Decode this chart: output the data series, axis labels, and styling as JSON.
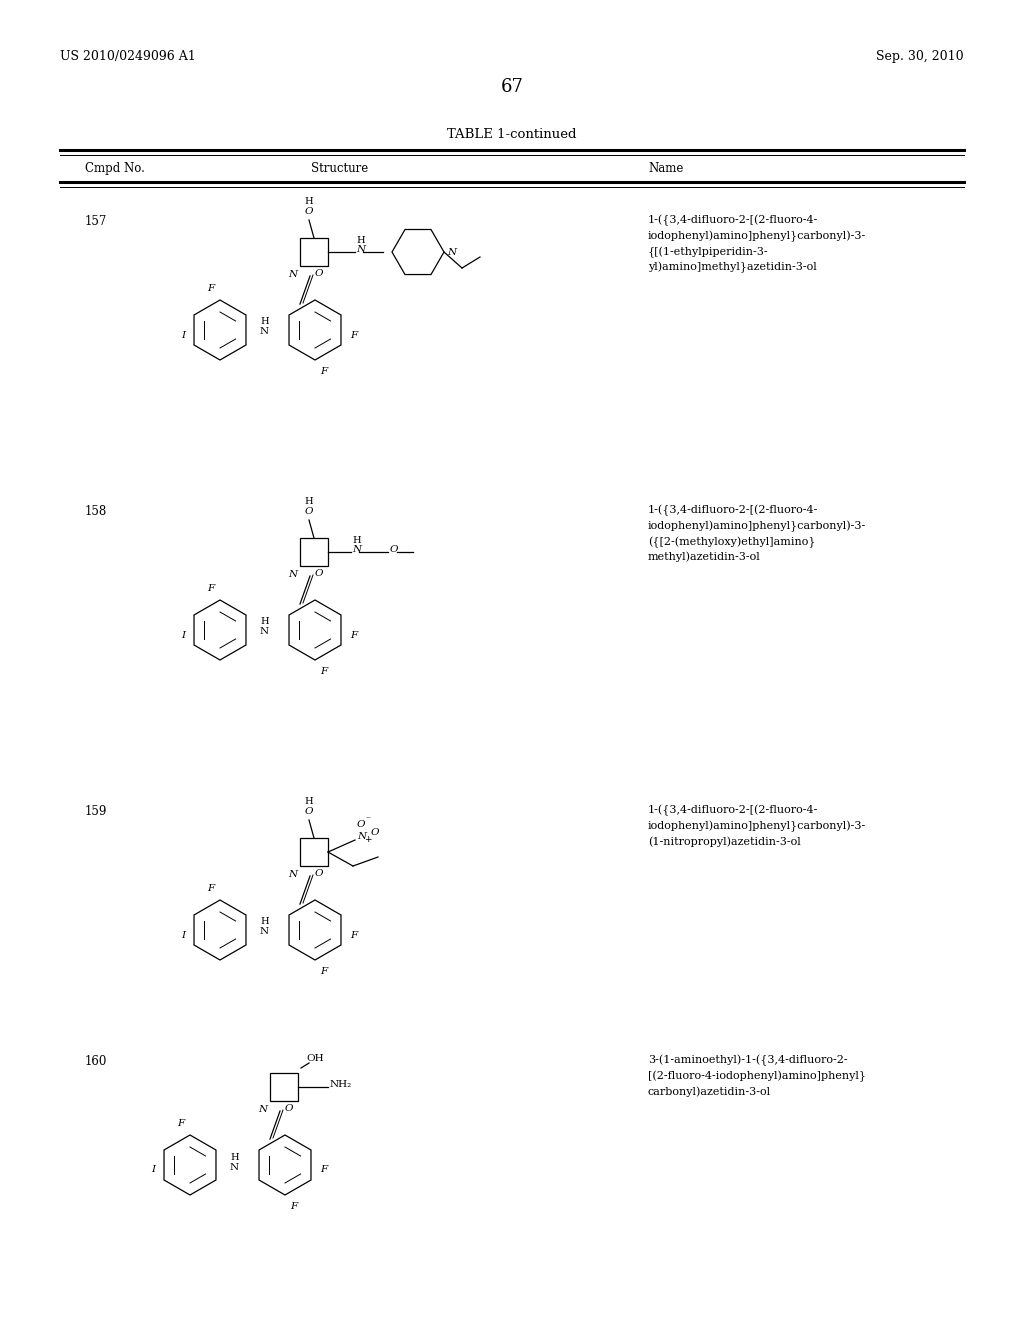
{
  "background_color": "#ffffff",
  "page_number": "67",
  "header_left": "US 2010/0249096 A1",
  "header_right": "Sep. 30, 2010",
  "table_title": "TABLE 1-continued",
  "col_headers": [
    "Cmpd No.",
    "Structure",
    "Name"
  ],
  "compounds": [
    {
      "number": "157",
      "name": "1-({3,4-difluoro-2-[(2-fluoro-4-\niodophenyl)amino]phenyl}carbonyl)-3-\n{[(1-ethylpiperidin-3-\nyl)amino]methyl}azetidin-3-ol"
    },
    {
      "number": "158",
      "name": "1-({3,4-difluoro-2-[(2-fluoro-4-\niodophenyl)amino]phenyl}carbonyl)-3-\n({[2-(methyloxy)ethyl]amino}\nmethyl)azetidin-3-ol"
    },
    {
      "number": "159",
      "name": "1-({3,4-difluoro-2-[(2-fluoro-4-\niodophenyl)amino]phenyl}carbonyl)-3-\n(1-nitropropyl)azetidin-3-ol"
    },
    {
      "number": "160",
      "name": "3-(1-aminoethyl)-1-({3,4-difluoro-2-\n[(2-fluoro-4-iodophenyl)amino]phenyl}\ncarbonyl)azetidin-3-ol"
    }
  ],
  "text_color": "#000000",
  "line_color": "#000000",
  "font_size_header": 9,
  "font_size_body": 8,
  "font_size_page": 12
}
